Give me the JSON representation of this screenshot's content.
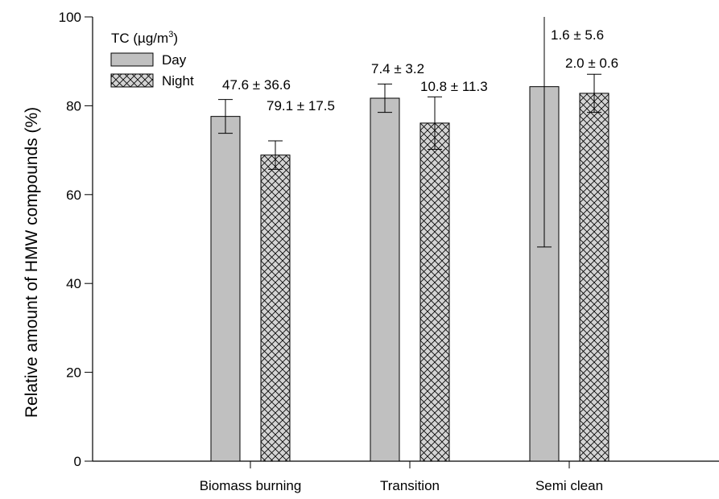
{
  "chart_data": {
    "type": "bar",
    "title": "",
    "xlabel": "",
    "ylabel": "Relative amount of HMW compounds (%)",
    "ylim": [
      0,
      100
    ],
    "yticks": [
      0,
      20,
      40,
      60,
      80,
      100
    ],
    "grid": false,
    "legend_title": "TC (µg/m3)",
    "legend_title_base": "TC (µg/m",
    "legend_title_sup": "3",
    "legend_title_close": ")",
    "legend_position": "top-left",
    "categories": [
      "Biomass burning",
      "Transition",
      "Semi clean"
    ],
    "series": [
      {
        "name": "Day",
        "pattern": "solid-gray",
        "color": "#c0c0c0",
        "values": [
          77.6,
          81.7,
          84.3
        ],
        "err_low": [
          3.8,
          3.2,
          36.1
        ],
        "err_high": [
          3.8,
          3.2,
          35.7
        ],
        "labels": [
          "47.6 ± 36.6",
          "7.4 ± 3.2",
          "1.6 ± 5.6"
        ]
      },
      {
        "name": "Night",
        "pattern": "crosshatch",
        "color": "#808080",
        "values": [
          68.9,
          76.1,
          82.8
        ],
        "err_low": [
          3.2,
          5.9,
          4.3
        ],
        "err_high": [
          3.2,
          5.9,
          4.3
        ],
        "labels": [
          "79.1 ± 17.5",
          "10.8 ± 11.3",
          "2.0 ± 0.6"
        ]
      }
    ]
  }
}
